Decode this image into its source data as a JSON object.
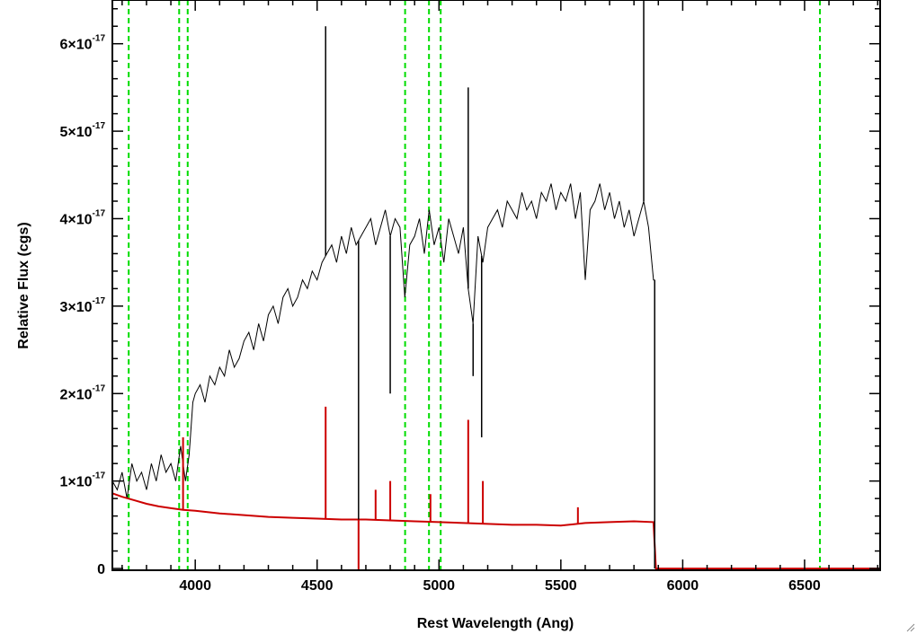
{
  "chart_data": {
    "type": "line",
    "title": "",
    "xlabel": "Rest Wavelength (Ang)",
    "ylabel": "Relative Flux (cgs)",
    "xlim": [
      3660,
      6810
    ],
    "ylim": [
      -2e-19,
      6.5e-17
    ],
    "grid": false,
    "x_ticks": [
      {
        "value": 4000,
        "label": "4000"
      },
      {
        "value": 4500,
        "label": "4500"
      },
      {
        "value": 5000,
        "label": "5000"
      },
      {
        "value": 5500,
        "label": "5500"
      },
      {
        "value": 6000,
        "label": "6000"
      },
      {
        "value": 6500,
        "label": "6500"
      }
    ],
    "y_ticks": [
      {
        "value": 0,
        "mantissa": "0",
        "exponent": ""
      },
      {
        "value": 1e-17,
        "mantissa": "1×10",
        "exponent": "-17"
      },
      {
        "value": 2e-17,
        "mantissa": "2×10",
        "exponent": "-17"
      },
      {
        "value": 3e-17,
        "mantissa": "3×10",
        "exponent": "-17"
      },
      {
        "value": 4e-17,
        "mantissa": "4×10",
        "exponent": "-17"
      },
      {
        "value": 5e-17,
        "mantissa": "5×10",
        "exponent": "-17"
      },
      {
        "value": 6e-17,
        "mantissa": "6×10",
        "exponent": "-17"
      }
    ],
    "reference_lines_x": [
      3727,
      3934,
      3969,
      4861,
      4959,
      5007,
      6563
    ],
    "series": [
      {
        "color": "#000000",
        "x": [
          3660,
          3680,
          3700,
          3720,
          3740,
          3760,
          3780,
          3800,
          3820,
          3840,
          3860,
          3880,
          3900,
          3920,
          3940,
          3960,
          3975,
          3990,
          4000,
          4020,
          4040,
          4060,
          4080,
          4100,
          4120,
          4140,
          4160,
          4180,
          4200,
          4220,
          4240,
          4260,
          4280,
          4300,
          4320,
          4340,
          4360,
          4380,
          4400,
          4420,
          4440,
          4460,
          4480,
          4500,
          4520,
          4540,
          4560,
          4580,
          4600,
          4620,
          4640,
          4660,
          4680,
          4700,
          4720,
          4740,
          4760,
          4780,
          4800,
          4820,
          4840,
          4860,
          4880,
          4900,
          4920,
          4940,
          4960,
          4980,
          5000,
          5020,
          5040,
          5060,
          5080,
          5100,
          5120,
          5140,
          5160,
          5180,
          5200,
          5220,
          5240,
          5260,
          5280,
          5300,
          5320,
          5340,
          5360,
          5380,
          5400,
          5420,
          5440,
          5460,
          5480,
          5500,
          5520,
          5540,
          5560,
          5580,
          5600,
          5620,
          5640,
          5660,
          5680,
          5700,
          5720,
          5740,
          5760,
          5780,
          5800,
          5820,
          5840,
          5860,
          5880,
          5885
        ],
        "y": [
          1e-17,
          9e-18,
          1.1e-17,
          8e-18,
          1.2e-17,
          1e-17,
          1.1e-17,
          9e-18,
          1.2e-17,
          1e-17,
          1.3e-17,
          1.1e-17,
          1.2e-17,
          1e-17,
          1.4e-17,
          1e-17,
          1.3e-17,
          1.9e-17,
          2e-17,
          2.1e-17,
          1.9e-17,
          2.2e-17,
          2.1e-17,
          2.3e-17,
          2.2e-17,
          2.5e-17,
          2.3e-17,
          2.4e-17,
          2.6e-17,
          2.7e-17,
          2.5e-17,
          2.8e-17,
          2.6e-17,
          2.9e-17,
          3e-17,
          2.8e-17,
          3.1e-17,
          3.2e-17,
          3e-17,
          3.1e-17,
          3.3e-17,
          3.2e-17,
          3.4e-17,
          3.3e-17,
          3.5e-17,
          3.6e-17,
          3.7e-17,
          3.5e-17,
          3.8e-17,
          3.6e-17,
          3.9e-17,
          3.7e-17,
          3.8e-17,
          3.9e-17,
          4e-17,
          3.7e-17,
          3.9e-17,
          4.1e-17,
          3.8e-17,
          4e-17,
          3.9e-17,
          3.1e-17,
          3.7e-17,
          3.8e-17,
          4e-17,
          3.6e-17,
          4.1e-17,
          3.7e-17,
          3.9e-17,
          3.5e-17,
          4e-17,
          3.8e-17,
          3.6e-17,
          3.9e-17,
          3.2e-17,
          2.8e-17,
          3.8e-17,
          3.5e-17,
          3.9e-17,
          4e-17,
          4.1e-17,
          3.9e-17,
          4.2e-17,
          4.1e-17,
          4e-17,
          4.3e-17,
          4.1e-17,
          4.2e-17,
          4e-17,
          4.3e-17,
          4.2e-17,
          4.4e-17,
          4.1e-17,
          4.3e-17,
          4.2e-17,
          4.4e-17,
          4e-17,
          4.3e-17,
          3.3e-17,
          4.1e-17,
          4.2e-17,
          4.4e-17,
          4.1e-17,
          4.3e-17,
          4e-17,
          4.2e-17,
          3.9e-17,
          4.1e-17,
          3.8e-17,
          4e-17,
          4.2e-17,
          3.9e-17,
          3.3e-17,
          3.3e-17
        ]
      },
      {
        "color": "#cc0000",
        "x": [
          3660,
          3700,
          3750,
          3800,
          3850,
          3900,
          3950,
          4000,
          4100,
          4200,
          4300,
          4400,
          4500,
          4600,
          4700,
          4800,
          4900,
          5000,
          5100,
          5200,
          5300,
          5400,
          5500,
          5600,
          5700,
          5800,
          5880,
          5890,
          6000,
          6200,
          6400,
          6600,
          6810
        ],
        "y": [
          8.6e-18,
          8.2e-18,
          7.8e-18,
          7.4e-18,
          7.1e-18,
          6.9e-18,
          6.7e-18,
          6.6e-18,
          6.3e-18,
          6.1e-18,
          5.9e-18,
          5.8e-18,
          5.7e-18,
          5.6e-18,
          5.6e-18,
          5.5e-18,
          5.4e-18,
          5.3e-18,
          5.2e-18,
          5.1e-18,
          5e-18,
          5e-18,
          4.9e-18,
          5.2e-18,
          5.3e-18,
          5.4e-18,
          5.3e-18,
          0.0,
          0.0,
          0.0,
          0.0,
          0.0,
          0.0
        ]
      }
    ],
    "spikes_black": [
      {
        "x": 4535,
        "y": 6.2e-17
      },
      {
        "x": 4670,
        "y": 0.0
      },
      {
        "x": 4800,
        "y": 2e-17
      },
      {
        "x": 5120,
        "y": 5.5e-17
      },
      {
        "x": 5140,
        "y": 2.2e-17
      },
      {
        "x": 5175,
        "y": 1.5e-17
      },
      {
        "x": 5840,
        "y": 6.5e-17
      },
      {
        "x": 5885,
        "y": 0.0
      }
    ],
    "spikes_red": [
      {
        "x": 3950,
        "y": 1.5e-17
      },
      {
        "x": 4535,
        "y": 1.85e-17
      },
      {
        "x": 4670,
        "y": -2e-19
      },
      {
        "x": 4740,
        "y": 9e-18
      },
      {
        "x": 4800,
        "y": 1e-17
      },
      {
        "x": 4965,
        "y": 8.5e-18
      },
      {
        "x": 5120,
        "y": 1.7e-17
      },
      {
        "x": 5180,
        "y": 1e-17
      },
      {
        "x": 5570,
        "y": 7e-18
      }
    ]
  }
}
